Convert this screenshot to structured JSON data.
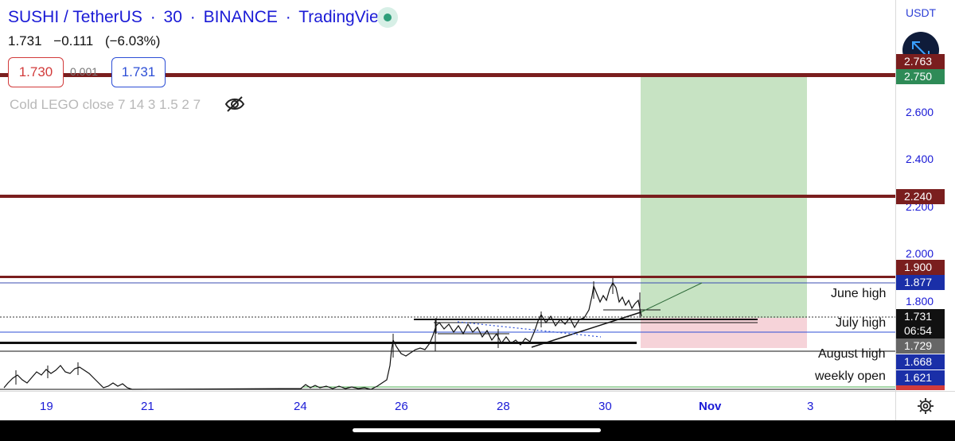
{
  "header": {
    "symbol": "SUSHI / TetherUS",
    "interval": "30",
    "exchange": "BINANCE",
    "platform": "TradingView",
    "sep": "·"
  },
  "ohlc": {
    "last": "1.731",
    "change": "−0.111",
    "change_pct": "(−6.03%)"
  },
  "order_boxes": {
    "sell": "1.730",
    "spread": "0.001",
    "buy": "1.731"
  },
  "indicator": {
    "label": "Cold LEGO close 7 14 3 1.5 2 7"
  },
  "price_axis": {
    "currency": "USDT",
    "ticks": [
      "2.600",
      "2.400",
      "2.200",
      "2.000",
      "1.800"
    ],
    "tags": {
      "top_hidden": "2.763",
      "target": "2.750",
      "level_2240": "2.240",
      "level_1900": "1.900",
      "june_high": "1.877",
      "last": "1.731",
      "countdown": "06:54",
      "stop": "1.729",
      "august_high": "1.668",
      "weekly_open": "1.621"
    }
  },
  "chart_labels": {
    "june_high": "June high",
    "july_high": "July high",
    "august_high": "August high",
    "weekly_open": "weekly open"
  },
  "time_axis": {
    "labels": [
      "19",
      "21",
      "24",
      "26",
      "28",
      "30",
      "Nov",
      "3"
    ]
  },
  "colors": {
    "accent_blue": "#1a1ad6",
    "resistance_red": "#7a1e1e",
    "profit_zone": "#c7e3c3",
    "loss_zone": "#f6d3d9",
    "ask_red": "#d23b3b",
    "bid_blue": "#2d4fd6"
  },
  "icons": {
    "live": "live-status-dot",
    "visibility": "eye-off-icon",
    "expand": "expand-arrows-icon",
    "settings": "gear-icon"
  }
}
